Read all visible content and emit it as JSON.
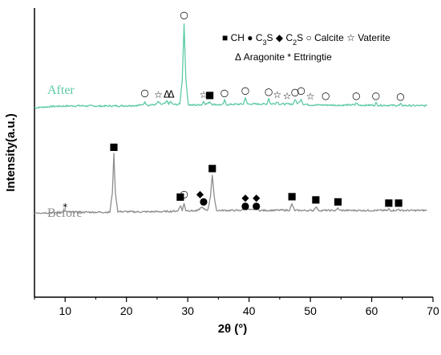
{
  "chart_data": {
    "type": "line",
    "xlabel": "2θ (°)",
    "ylabel": "Intensity(a.u.)",
    "xlim": [
      5,
      70
    ],
    "x_ticks": [
      10,
      20,
      30,
      40,
      50,
      60,
      70
    ],
    "grid": false,
    "y_tick_labels_shown": false,
    "colors": {
      "after": "#5cc9a7",
      "before": "#8c8c8c",
      "axis": "#000000"
    },
    "series": [
      {
        "name": "After",
        "color": "#5cc9a7",
        "baseline": 0.66,
        "points": [
          [
            5,
            0.655
          ],
          [
            8,
            0.66
          ],
          [
            12,
            0.662
          ],
          [
            16,
            0.661
          ],
          [
            20,
            0.662
          ],
          [
            22.5,
            0.664
          ],
          [
            23.0,
            0.674
          ],
          [
            23.5,
            0.664
          ],
          [
            24.8,
            0.666
          ],
          [
            25.2,
            0.676
          ],
          [
            25.6,
            0.666
          ],
          [
            26.3,
            0.67
          ],
          [
            26.6,
            0.678
          ],
          [
            26.9,
            0.669
          ],
          [
            27.2,
            0.676
          ],
          [
            27.6,
            0.666
          ],
          [
            28.7,
            0.667
          ],
          [
            29.1,
            0.75
          ],
          [
            29.4,
            0.945
          ],
          [
            29.7,
            0.75
          ],
          [
            30.1,
            0.666
          ],
          [
            31.0,
            0.664
          ],
          [
            32.3,
            0.666
          ],
          [
            32.6,
            0.678
          ],
          [
            32.9,
            0.668
          ],
          [
            33.3,
            0.67
          ],
          [
            33.6,
            0.676
          ],
          [
            34.0,
            0.667
          ],
          [
            35.7,
            0.665
          ],
          [
            36.0,
            0.681
          ],
          [
            36.3,
            0.666
          ],
          [
            39.1,
            0.668
          ],
          [
            39.4,
            0.692
          ],
          [
            39.7,
            0.668
          ],
          [
            42.9,
            0.668
          ],
          [
            43.2,
            0.688
          ],
          [
            43.5,
            0.668
          ],
          [
            44.3,
            0.67
          ],
          [
            44.6,
            0.677
          ],
          [
            44.9,
            0.668
          ],
          [
            47.2,
            0.668
          ],
          [
            47.5,
            0.684
          ],
          [
            47.8,
            0.67
          ],
          [
            48.2,
            0.674
          ],
          [
            48.5,
            0.686
          ],
          [
            48.8,
            0.668
          ],
          [
            50,
            0.665
          ],
          [
            55,
            0.664
          ],
          [
            57.3,
            0.665
          ],
          [
            57.5,
            0.673
          ],
          [
            57.8,
            0.664
          ],
          [
            60.5,
            0.664
          ],
          [
            60.7,
            0.672
          ],
          [
            61.0,
            0.664
          ],
          [
            64.5,
            0.663
          ],
          [
            64.7,
            0.668
          ],
          [
            65.0,
            0.663
          ],
          [
            69,
            0.662
          ]
        ]
      },
      {
        "name": "Before",
        "color": "#8c8c8c",
        "baseline": 0.3,
        "points": [
          [
            5,
            0.292
          ],
          [
            8,
            0.292
          ],
          [
            9.8,
            0.294
          ],
          [
            10.0,
            0.3
          ],
          [
            10.3,
            0.294
          ],
          [
            14,
            0.294
          ],
          [
            17.3,
            0.294
          ],
          [
            17.7,
            0.36
          ],
          [
            17.95,
            0.495
          ],
          [
            18.2,
            0.36
          ],
          [
            18.6,
            0.296
          ],
          [
            22,
            0.295
          ],
          [
            26,
            0.296
          ],
          [
            28.4,
            0.298
          ],
          [
            28.8,
            0.318
          ],
          [
            29.1,
            0.3
          ],
          [
            29.4,
            0.323
          ],
          [
            29.7,
            0.3
          ],
          [
            31.5,
            0.298
          ],
          [
            32.0,
            0.306
          ],
          [
            32.3,
            0.312
          ],
          [
            32.6,
            0.304
          ],
          [
            33.3,
            0.302
          ],
          [
            33.7,
            0.35
          ],
          [
            34.0,
            0.422
          ],
          [
            34.3,
            0.35
          ],
          [
            34.7,
            0.3
          ],
          [
            38.5,
            0.3
          ],
          [
            39.4,
            0.305
          ],
          [
            40.5,
            0.301
          ],
          [
            41.2,
            0.306
          ],
          [
            41.8,
            0.3
          ],
          [
            46.6,
            0.301
          ],
          [
            47.0,
            0.322
          ],
          [
            47.4,
            0.3
          ],
          [
            50.5,
            0.3
          ],
          [
            50.9,
            0.314
          ],
          [
            51.3,
            0.3
          ],
          [
            54.2,
            0.3
          ],
          [
            54.5,
            0.308
          ],
          [
            54.8,
            0.3
          ],
          [
            60,
            0.3
          ],
          [
            62.6,
            0.3
          ],
          [
            62.8,
            0.305
          ],
          [
            63.1,
            0.3
          ],
          [
            64.2,
            0.301
          ],
          [
            64.4,
            0.305
          ],
          [
            64.7,
            0.3
          ],
          [
            69,
            0.3
          ]
        ]
      }
    ],
    "legend": {
      "row1": [
        {
          "symbol": "■",
          "label": "CH"
        },
        {
          "symbol": "●",
          "label": "C",
          "sub": "3",
          "suffix": "S"
        },
        {
          "symbol": "◆",
          "label": "C",
          "sub": "2",
          "suffix": "S"
        },
        {
          "symbol": "○",
          "label": "Calcite"
        },
        {
          "symbol": "☆",
          "label": "Vaterite"
        }
      ],
      "row2": [
        {
          "symbol": "Δ",
          "label": "Aragonite"
        },
        {
          "symbol": "*",
          "label": "Ettringtie"
        }
      ]
    },
    "phase_markers": [
      {
        "symbol": "○",
        "x": 29.4,
        "y": 0.975
      },
      {
        "symbol": "○",
        "x": 23.0,
        "y": 0.705
      },
      {
        "symbol": "☆",
        "x": 25.2,
        "y": 0.699
      },
      {
        "symbol": "Δ",
        "x": 26.6,
        "y": 0.7
      },
      {
        "symbol": "Δ",
        "x": 27.3,
        "y": 0.7
      },
      {
        "symbol": "☆",
        "x": 32.6,
        "y": 0.699
      },
      {
        "symbol": "■",
        "x": 33.6,
        "y": 0.699
      },
      {
        "symbol": "○",
        "x": 36.0,
        "y": 0.706
      },
      {
        "symbol": "○",
        "x": 39.4,
        "y": 0.714
      },
      {
        "symbol": "○",
        "x": 43.2,
        "y": 0.71
      },
      {
        "symbol": "☆",
        "x": 44.6,
        "y": 0.699
      },
      {
        "symbol": "☆",
        "x": 46.2,
        "y": 0.695
      },
      {
        "symbol": "○",
        "x": 47.5,
        "y": 0.708
      },
      {
        "symbol": "○",
        "x": 48.5,
        "y": 0.714
      },
      {
        "symbol": "☆",
        "x": 50.0,
        "y": 0.693
      },
      {
        "symbol": "○",
        "x": 52.5,
        "y": 0.696
      },
      {
        "symbol": "○",
        "x": 57.5,
        "y": 0.696
      },
      {
        "symbol": "○",
        "x": 60.7,
        "y": 0.696
      },
      {
        "symbol": "○",
        "x": 64.7,
        "y": 0.693
      },
      {
        "symbol": "*",
        "x": 10.0,
        "y": 0.31
      },
      {
        "symbol": "■",
        "x": 17.95,
        "y": 0.52
      },
      {
        "symbol": "■",
        "x": 28.8,
        "y": 0.347
      },
      {
        "symbol": "○",
        "x": 29.4,
        "y": 0.356
      },
      {
        "symbol": "◆",
        "x": 32.0,
        "y": 0.356
      },
      {
        "symbol": "●",
        "x": 32.6,
        "y": 0.33
      },
      {
        "symbol": "■",
        "x": 34.0,
        "y": 0.446
      },
      {
        "symbol": "◆",
        "x": 39.4,
        "y": 0.343
      },
      {
        "symbol": "●",
        "x": 39.4,
        "y": 0.315
      },
      {
        "symbol": "◆",
        "x": 41.2,
        "y": 0.343
      },
      {
        "symbol": "●",
        "x": 41.2,
        "y": 0.315
      },
      {
        "symbol": "■",
        "x": 47.0,
        "y": 0.348
      },
      {
        "symbol": "■",
        "x": 50.9,
        "y": 0.338
      },
      {
        "symbol": "■",
        "x": 54.5,
        "y": 0.33
      },
      {
        "symbol": "■",
        "x": 62.8,
        "y": 0.327
      },
      {
        "symbol": "■",
        "x": 64.4,
        "y": 0.327
      }
    ]
  }
}
